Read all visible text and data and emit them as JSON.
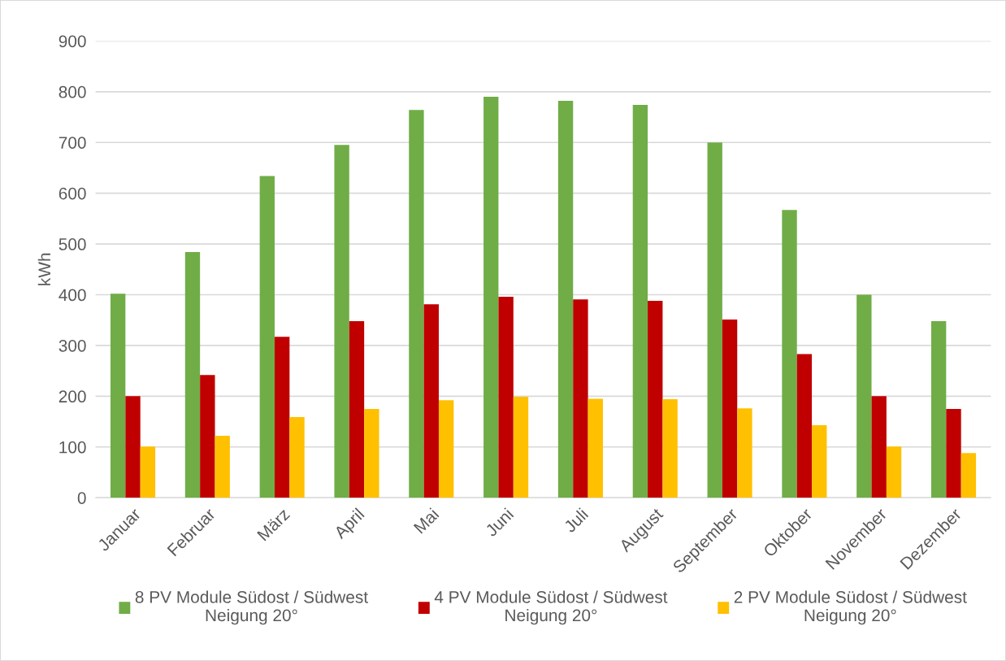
{
  "chart_data": {
    "type": "bar",
    "ylabel": "kWh",
    "categories": [
      "Januar",
      "Februar",
      "März",
      "April",
      "Mai",
      "Juni",
      "Juli",
      "August",
      "September",
      "Oktober",
      "November",
      "Dezember"
    ],
    "series": [
      {
        "name": "8 PV Module Südost / Südwest\nNeigung 20°",
        "color": "#70ad47",
        "values": [
          402,
          484,
          634,
          695,
          764,
          790,
          782,
          774,
          700,
          567,
          400,
          348
        ]
      },
      {
        "name": "4 PV Module Südost / Südwest\nNeigung 20°",
        "color": "#c00000",
        "values": [
          200,
          242,
          317,
          348,
          381,
          396,
          391,
          388,
          351,
          283,
          200,
          175
        ]
      },
      {
        "name": "2 PV Module Südost / Südwest\nNeigung 20°",
        "color": "#ffc000",
        "values": [
          101,
          122,
          159,
          175,
          192,
          199,
          195,
          194,
          176,
          143,
          101,
          88
        ]
      }
    ],
    "ylim": [
      0,
      900
    ],
    "yticks": [
      0,
      100,
      200,
      300,
      400,
      500,
      600,
      700,
      800,
      900
    ],
    "grid": "y",
    "legend": "bottom"
  }
}
